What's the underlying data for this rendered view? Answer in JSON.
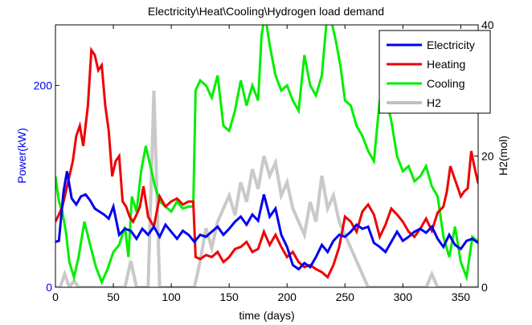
{
  "chart_data": {
    "type": "line",
    "title": "Electricity\\Heat\\Cooling\\Hydrogen load demand",
    "xlabel": "time (days)",
    "ylabel_left": "Power(kW)",
    "ylabel_right": "H2(mol)",
    "xlim": [
      0,
      365
    ],
    "ylim_left": [
      0,
      260
    ],
    "ylim_right": [
      0,
      40
    ],
    "x_ticks": [
      "0",
      "50",
      "100",
      "150",
      "200",
      "250",
      "300",
      "350"
    ],
    "y_left_ticks": [
      "0",
      "200"
    ],
    "y_right_ticks": [
      "0",
      "20",
      "40"
    ],
    "legend_position": "top-right",
    "grid": false,
    "series": [
      {
        "name": "Electricity",
        "axis": "left",
        "color": "#0000ee",
        "x": [
          0,
          3,
          7,
          10,
          14,
          18,
          22,
          26,
          30,
          34,
          38,
          42,
          46,
          50,
          55,
          60,
          65,
          70,
          75,
          80,
          85,
          90,
          95,
          100,
          105,
          110,
          115,
          120,
          125,
          130,
          135,
          140,
          145,
          150,
          155,
          160,
          165,
          170,
          175,
          180,
          185,
          190,
          195,
          200,
          205,
          210,
          215,
          220,
          225,
          230,
          235,
          240,
          245,
          250,
          255,
          260,
          265,
          270,
          275,
          280,
          285,
          290,
          295,
          300,
          305,
          310,
          315,
          320,
          325,
          330,
          335,
          340,
          345,
          350,
          355,
          360,
          365
        ],
        "values": [
          45,
          46,
          95,
          115,
          88,
          82,
          90,
          92,
          86,
          78,
          75,
          72,
          68,
          80,
          52,
          58,
          56,
          48,
          58,
          52,
          60,
          50,
          62,
          55,
          48,
          56,
          52,
          45,
          52,
          50,
          55,
          60,
          52,
          58,
          65,
          70,
          62,
          72,
          66,
          92,
          70,
          78,
          52,
          40,
          22,
          18,
          24,
          20,
          30,
          42,
          35,
          46,
          52,
          50,
          55,
          62,
          58,
          60,
          44,
          40,
          35,
          45,
          55,
          46,
          50,
          55,
          58,
          54,
          60,
          48,
          40,
          52,
          42,
          38,
          46,
          48,
          44
        ]
      },
      {
        "name": "Heating",
        "axis": "left",
        "color": "#ee0000",
        "x": [
          0,
          3,
          6,
          9,
          12,
          15,
          18,
          21,
          24,
          28,
          31,
          34,
          37,
          40,
          43,
          46,
          49,
          52,
          55,
          58,
          61,
          64,
          67,
          70,
          73,
          76,
          80,
          85,
          90,
          95,
          100,
          105,
          110,
          115,
          119,
          121,
          125,
          130,
          135,
          140,
          145,
          150,
          155,
          160,
          165,
          170,
          175,
          180,
          185,
          190,
          195,
          200,
          205,
          210,
          215,
          220,
          225,
          230,
          235,
          240,
          245,
          250,
          255,
          260,
          265,
          270,
          275,
          280,
          285,
          290,
          295,
          300,
          305,
          310,
          315,
          320,
          325,
          330,
          335,
          338,
          341,
          344,
          347,
          350,
          353,
          356,
          359,
          362,
          365
        ],
        "values": [
          65,
          72,
          80,
          95,
          110,
          125,
          150,
          160,
          140,
          180,
          235,
          230,
          215,
          220,
          180,
          155,
          110,
          125,
          130,
          85,
          80,
          70,
          65,
          72,
          80,
          100,
          70,
          60,
          90,
          80,
          85,
          88,
          82,
          85,
          85,
          30,
          28,
          32,
          30,
          35,
          25,
          30,
          38,
          40,
          45,
          35,
          38,
          55,
          42,
          52,
          40,
          30,
          35,
          25,
          20,
          22,
          18,
          15,
          10,
          22,
          40,
          70,
          65,
          55,
          75,
          82,
          72,
          50,
          62,
          78,
          72,
          65,
          55,
          50,
          58,
          68,
          56,
          74,
          80,
          95,
          120,
          110,
          100,
          90,
          95,
          98,
          135,
          118,
          103
        ]
      },
      {
        "name": "Cooling",
        "axis": "left",
        "color": "#00ee00",
        "x": [
          0,
          3,
          6,
          9,
          12,
          16,
          20,
          25,
          30,
          35,
          40,
          45,
          50,
          55,
          60,
          63,
          66,
          70,
          74,
          78,
          82,
          86,
          90,
          95,
          100,
          105,
          110,
          115,
          119,
          121,
          125,
          130,
          135,
          140,
          145,
          150,
          155,
          160,
          165,
          170,
          175,
          178,
          181,
          185,
          190,
          195,
          200,
          205,
          210,
          215,
          220,
          225,
          230,
          234,
          238,
          242,
          246,
          250,
          255,
          260,
          265,
          270,
          275,
          280,
          285,
          290,
          295,
          300,
          305,
          310,
          315,
          320,
          325,
          330,
          335,
          340,
          345,
          350,
          355,
          360,
          365
        ],
        "values": [
          110,
          85,
          75,
          55,
          25,
          10,
          30,
          65,
          42,
          20,
          5,
          18,
          35,
          42,
          60,
          30,
          90,
          75,
          115,
          140,
          120,
          100,
          85,
          80,
          75,
          85,
          78,
          80,
          80,
          195,
          205,
          200,
          188,
          210,
          160,
          155,
          175,
          205,
          180,
          200,
          185,
          250,
          270,
          240,
          210,
          195,
          200,
          185,
          175,
          230,
          200,
          190,
          210,
          262,
          265,
          245,
          220,
          185,
          180,
          160,
          150,
          135,
          125,
          185,
          190,
          165,
          130,
          115,
          120,
          105,
          110,
          120,
          100,
          90,
          50,
          30,
          60,
          25,
          10,
          50,
          45
        ]
      },
      {
        "name": "H2",
        "axis": "right",
        "color": "#c0c0c0",
        "x": [
          0,
          4,
          8,
          12,
          16,
          20,
          25,
          30,
          35,
          40,
          45,
          50,
          55,
          60,
          65,
          70,
          75,
          80,
          85,
          90,
          95,
          100,
          105,
          110,
          115,
          120,
          125,
          130,
          135,
          140,
          145,
          150,
          155,
          160,
          165,
          170,
          175,
          180,
          185,
          190,
          195,
          200,
          205,
          210,
          215,
          220,
          225,
          230,
          235,
          240,
          245,
          250,
          255,
          260,
          265,
          270,
          275,
          280,
          285,
          290,
          295,
          300,
          305,
          310,
          315,
          320,
          325,
          330,
          335,
          340,
          345,
          350,
          355,
          360,
          365
        ],
        "values": [
          0,
          0,
          2,
          0,
          1,
          0,
          0,
          0,
          0,
          0,
          0,
          0,
          0,
          0,
          4,
          0,
          0,
          0,
          30,
          0,
          0,
          0,
          0,
          0,
          0,
          0,
          4,
          9,
          6,
          10,
          12,
          14,
          11,
          16,
          13,
          18,
          15,
          20,
          17,
          19,
          14,
          16,
          12,
          10,
          8,
          13,
          10,
          17,
          12,
          14,
          10,
          8,
          6,
          4,
          2,
          0,
          0,
          0,
          0,
          0,
          0,
          0,
          0,
          0,
          0,
          0,
          2,
          0,
          0,
          0,
          0,
          0,
          0,
          0,
          0
        ]
      }
    ]
  }
}
